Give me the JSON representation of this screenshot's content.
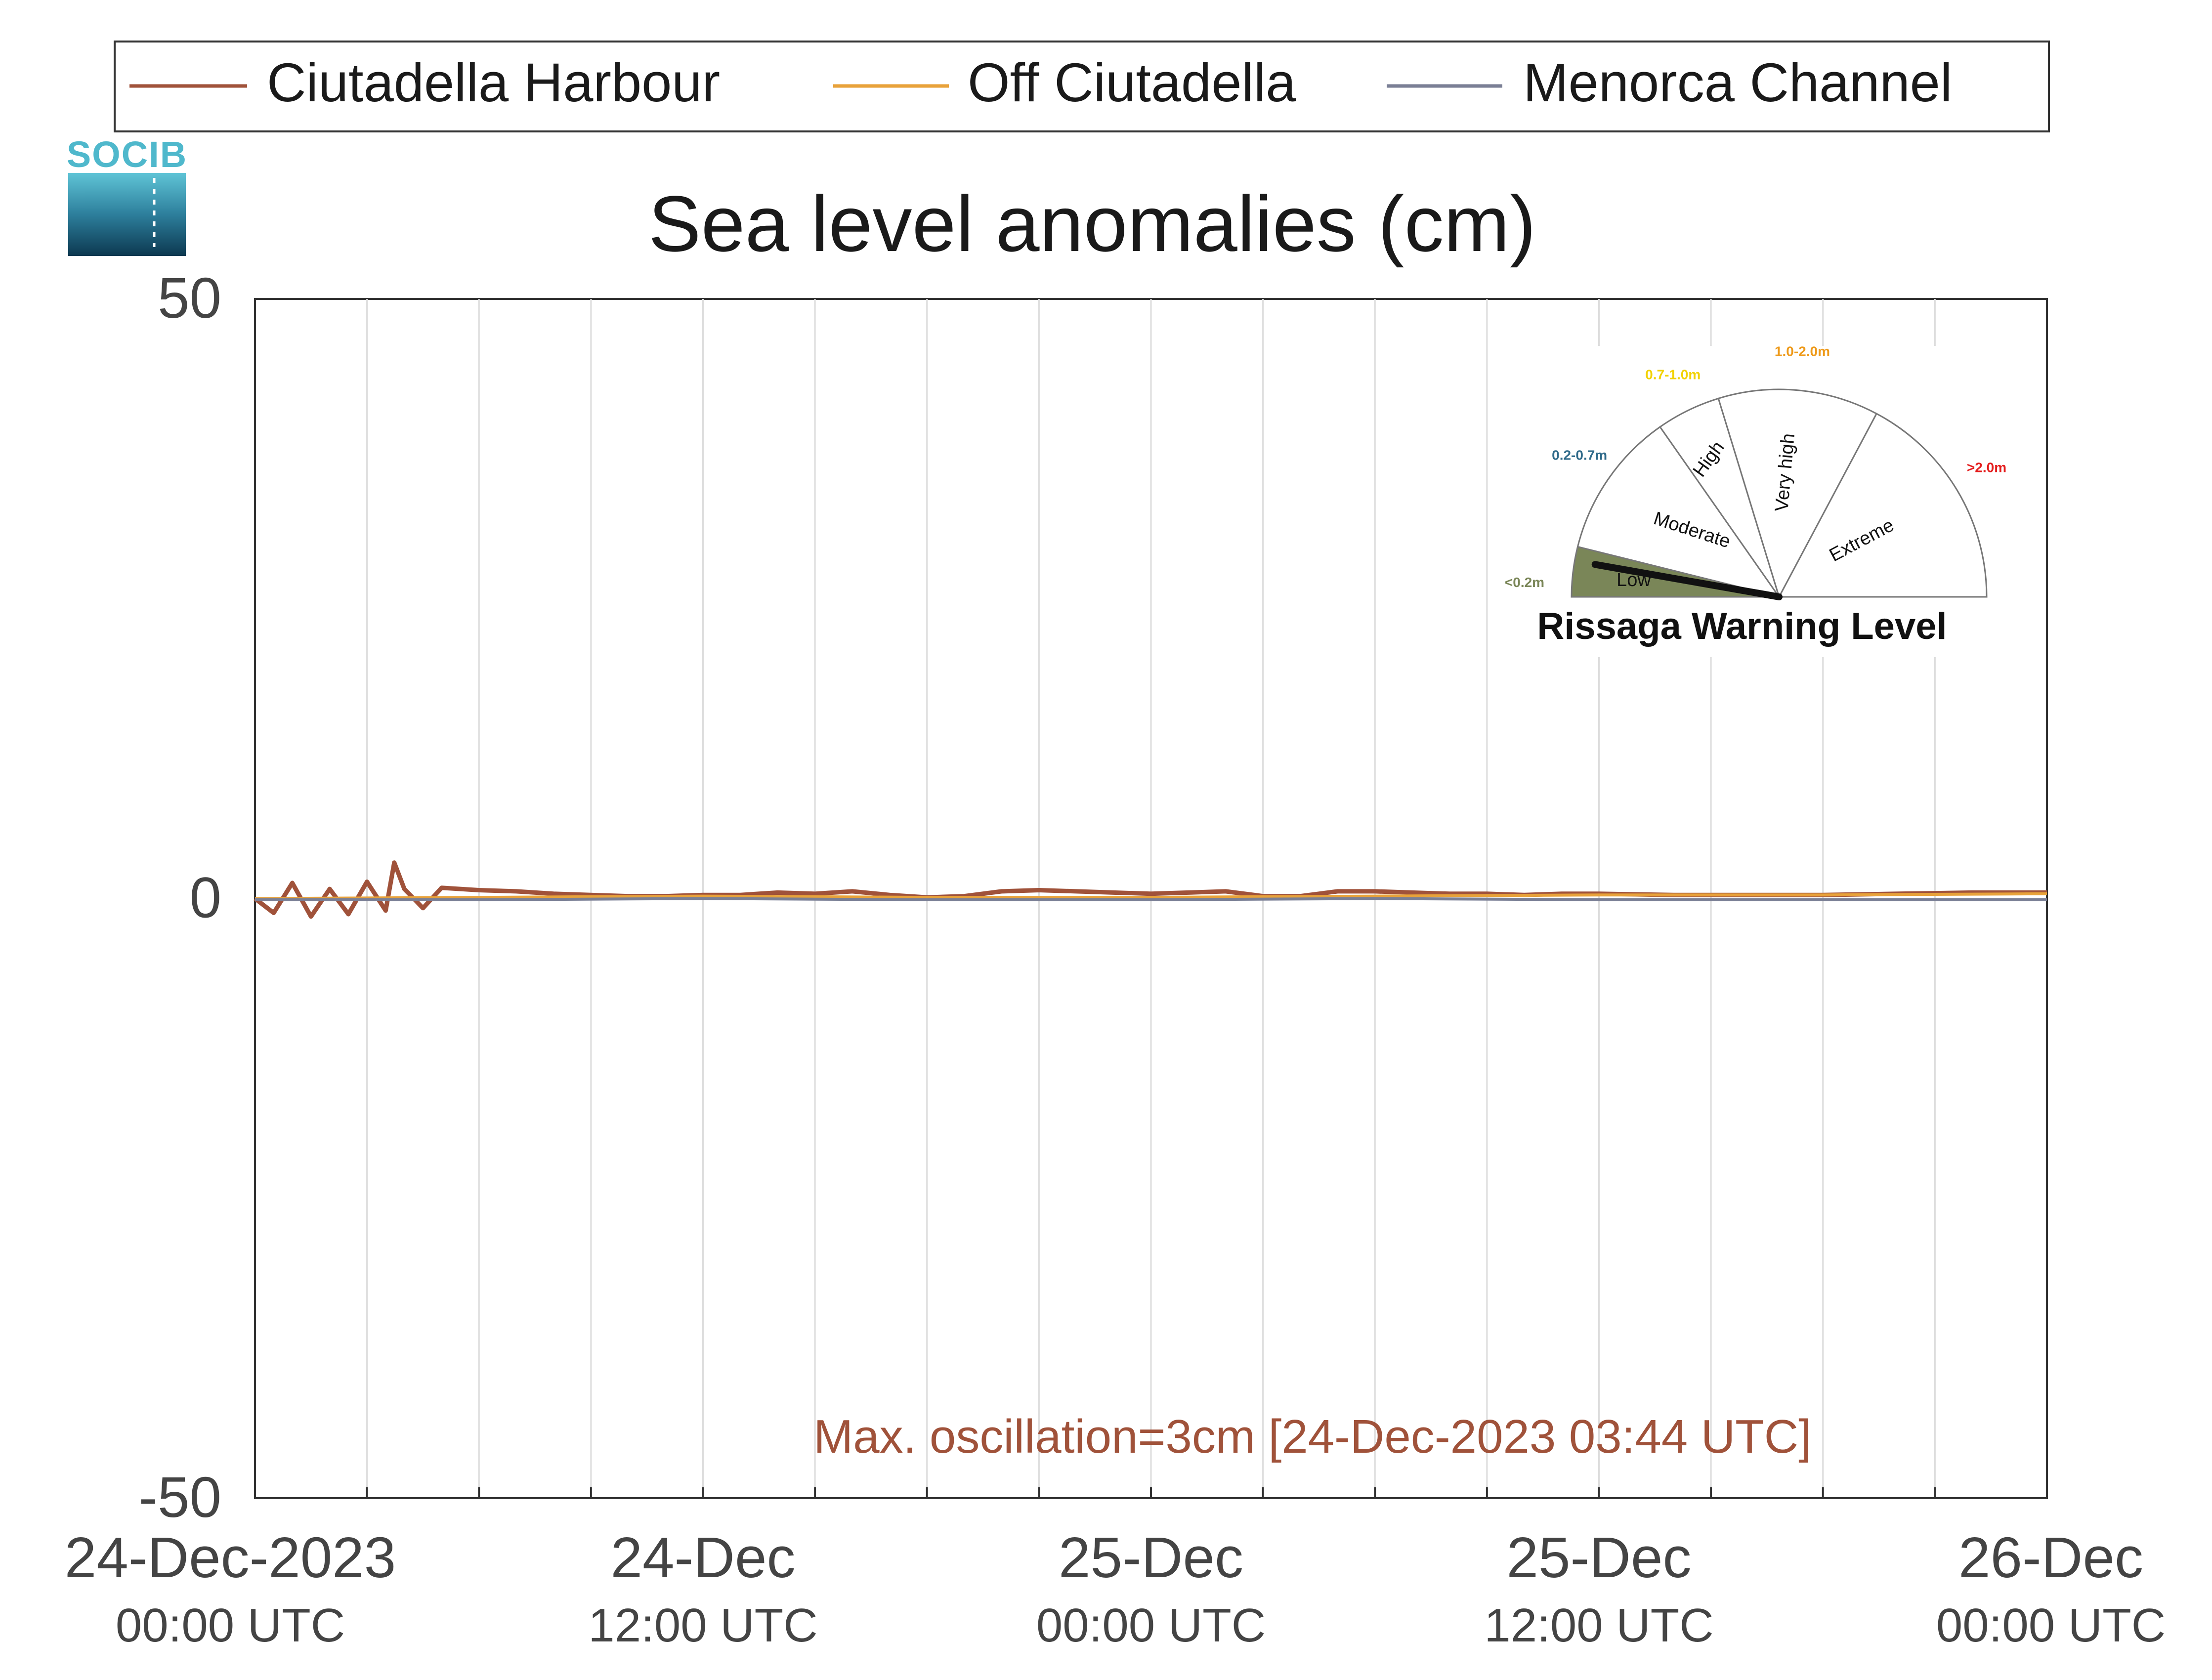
{
  "logo": {
    "text": "SOCIB"
  },
  "legend": {
    "items": [
      {
        "label": "Ciutadella Harbour",
        "color": "#a0523a"
      },
      {
        "label": "Off Ciutadella",
        "color": "#e8a23a"
      },
      {
        "label": "Menorca Channel",
        "color": "#7a7f95"
      }
    ]
  },
  "chart_data": {
    "type": "line",
    "title": "Sea level anomalies (cm)",
    "xlabel": "",
    "ylabel": "",
    "ylim": [
      -50,
      50
    ],
    "yticks": [
      50,
      0,
      -50
    ],
    "xlim_hours": [
      0,
      48
    ],
    "grid": "x",
    "legend_position": "top",
    "x_tick_labels": [
      {
        "hour": 0,
        "line1": "24-Dec-2023",
        "line2": "00:00 UTC"
      },
      {
        "hour": 12,
        "line1": "24-Dec",
        "line2": "12:00 UTC"
      },
      {
        "hour": 24,
        "line1": "25-Dec",
        "line2": "00:00 UTC"
      },
      {
        "hour": 36,
        "line1": "25-Dec",
        "line2": "12:00 UTC"
      },
      {
        "hour": 48,
        "line1": "26-Dec",
        "line2": "00:00 UTC"
      }
    ],
    "series": [
      {
        "name": "Ciutadella Harbour",
        "color": "#a0523a",
        "x": [
          0,
          0.5,
          1,
          1.5,
          2,
          2.5,
          3,
          3.5,
          3.73,
          4,
          4.5,
          5,
          6,
          7,
          8,
          9,
          10,
          11,
          12,
          13,
          14,
          15,
          16,
          17,
          18,
          19,
          20,
          21,
          22,
          23,
          24,
          25,
          26,
          27,
          28,
          29,
          30,
          31,
          32,
          33,
          34,
          35,
          36,
          38,
          40,
          42,
          44,
          46,
          48
        ],
        "y": [
          0,
          -1.2,
          1.3,
          -1.5,
          0.8,
          -1.3,
          1.4,
          -1.0,
          3.0,
          0.8,
          -0.8,
          0.9,
          0.7,
          0.6,
          0.4,
          0.3,
          0.2,
          0.2,
          0.3,
          0.3,
          0.5,
          0.4,
          0.6,
          0.3,
          0.1,
          0.2,
          0.6,
          0.7,
          0.6,
          0.5,
          0.4,
          0.5,
          0.6,
          0.2,
          0.2,
          0.6,
          0.6,
          0.5,
          0.4,
          0.4,
          0.3,
          0.4,
          0.4,
          0.3,
          0.3,
          0.3,
          0.4,
          0.5,
          0.5
        ]
      },
      {
        "name": "Off Ciutadella",
        "color": "#e8a23a",
        "x": [
          0,
          6,
          12,
          18,
          24,
          30,
          36,
          42,
          48
        ],
        "y": [
          0.0,
          0.1,
          0.2,
          0.1,
          0.1,
          0.2,
          0.3,
          0.3,
          0.4
        ]
      },
      {
        "name": "Menorca Channel",
        "color": "#7a7f95",
        "x": [
          0,
          6,
          12,
          18,
          24,
          30,
          36,
          42,
          48
        ],
        "y": [
          -0.1,
          -0.1,
          0.0,
          -0.1,
          -0.1,
          0.0,
          -0.1,
          -0.1,
          -0.1
        ]
      }
    ],
    "annotations": [
      {
        "text": "Max. oscillation=3cm [24-Dec-2023 03:44 UTC]",
        "color": "#a0523a"
      }
    ]
  },
  "warning_gauge": {
    "title": "Rissaga Warning Level",
    "current_level": "Low",
    "sectors": [
      {
        "label": "Low",
        "range": "<0.2m",
        "range_color": "#7a8658",
        "fill": "#7a8658"
      },
      {
        "label": "Moderate",
        "range": "0.2-0.7m",
        "range_color": "#2f6a8a",
        "fill": "#ffffff"
      },
      {
        "label": "High",
        "range": "0.7-1.0m",
        "range_color": "#f2d200",
        "fill": "#ffffff"
      },
      {
        "label": "Very high",
        "range": "1.0-2.0m",
        "range_color": "#ee9a1a",
        "fill": "#ffffff"
      },
      {
        "label": "Extreme",
        "range": ">2.0m",
        "range_color": "#e41e1e",
        "fill": "#ffffff"
      }
    ]
  }
}
